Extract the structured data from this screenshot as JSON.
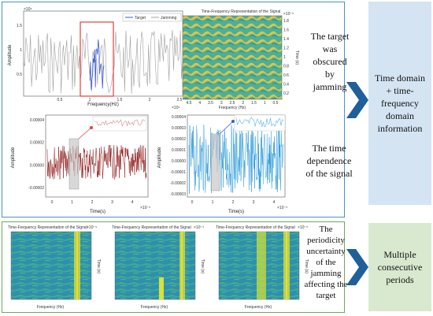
{
  "top_panel": {
    "chart_a": {
      "ylabel": "Amplitude",
      "xlabel": "Frequency(Hz)",
      "y_exp": "×10⁴",
      "x_exp": "×10⁴",
      "yticks": [
        "1.5",
        "1",
        "0.5"
      ],
      "xticks": [
        "0.5",
        "1",
        "1.5",
        "2",
        "2.5"
      ],
      "legend": [
        "Target",
        "Jamming"
      ],
      "colors": {
        "target": "#3a5bd0",
        "jamming": "#a0a0a0",
        "box": "#e04040"
      }
    },
    "chart_b": {
      "title": "Time-Frequency Representation of the Signal",
      "xlabel": "Frequency (Hz)",
      "ylabel": "Time (s)",
      "exp": "×10⁻⁵",
      "xticks": [
        "4.5",
        "4",
        "3.5",
        "3",
        "2.5",
        "2",
        "1.5",
        "1",
        "0.5"
      ],
      "yticks": [
        "1.8",
        "1.6",
        "1.4",
        "1.2",
        "1",
        "0.8",
        "0.6",
        "0.4",
        "0.2"
      ]
    },
    "chart_c": {
      "ylabel": "Amplitude",
      "xlabel": "Time(s)",
      "x_exp": "×10⁻⁵",
      "yticks": [
        "0.00004",
        "0.00002",
        "0.00000",
        "-0.00002"
      ],
      "xticks": [
        "0",
        "1",
        "2",
        "3",
        "4"
      ],
      "color": "#8b0f0f"
    },
    "chart_d": {
      "ylabel": "Amplitude",
      "xlabel": "Time(s)",
      "x_exp": "×10⁻⁵",
      "yticks": [
        "0.00004",
        "0.00003",
        "0.00002",
        "0.00001",
        "0.00000",
        "-0.00001",
        "-0.00002",
        "-0.00003"
      ],
      "xticks": [
        "0",
        "1",
        "2",
        "3",
        "4"
      ],
      "color": "#2a9ad8"
    },
    "caption_1": [
      "The target",
      "was",
      "obscured",
      "by",
      "jamming"
    ],
    "caption_2": [
      "The time",
      "dependence",
      "of the signal"
    ]
  },
  "top_summary": [
    "Time domain",
    "+ time-",
    "frequency",
    "domain",
    "information"
  ],
  "bottom_panel": {
    "tf_title": "Time-Frequency Representation of the Signal",
    "xlabel": "Frequency (Hz)",
    "ylabel": "Time (s)",
    "exp": "×10⁻⁵",
    "caption": [
      "The",
      "periodicity",
      "uncertainty",
      "of the",
      "jamming",
      "affecting the",
      "target"
    ]
  },
  "bottom_summary": [
    "Multiple",
    "consecutive",
    "periods"
  ],
  "colors": {
    "arrow": "#1f5f9a",
    "top_box": "#d4e4f3",
    "bottom_box": "#d9e9cf"
  }
}
